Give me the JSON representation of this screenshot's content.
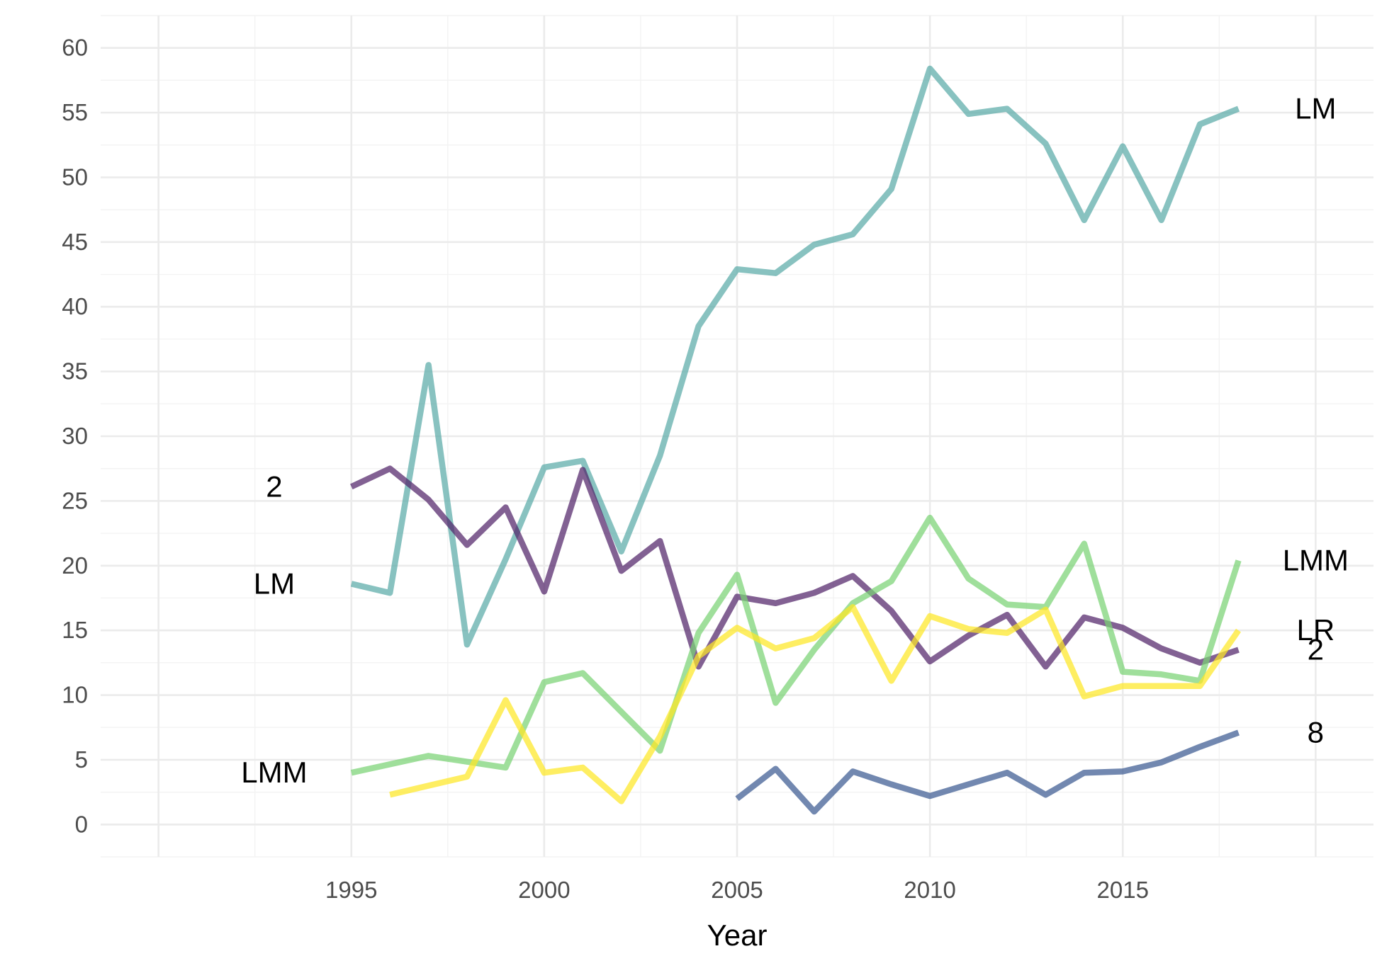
{
  "chart_data": {
    "type": "line",
    "title": "",
    "xlabel": "Year",
    "ylabel": "",
    "xlim": [
      1988.5,
      2021.5
    ],
    "ylim": [
      -2.5,
      62.5
    ],
    "x_ticks": [
      1995,
      2000,
      2005,
      2010,
      2015
    ],
    "y_ticks": [
      0,
      5,
      10,
      15,
      20,
      25,
      30,
      35,
      40,
      45,
      50,
      55,
      60
    ],
    "grid": true,
    "legend": "none",
    "series": [
      {
        "color": "#5aaaa7",
        "start_label": "LM",
        "end_label": "LM",
        "x": [
          1995,
          1996,
          1997,
          1998,
          1999,
          2000,
          2001,
          2002,
          2003,
          2004,
          2005,
          2006,
          2007,
          2008,
          2009,
          2010,
          2011,
          2012,
          2013,
          2014,
          2015,
          2016,
          2017,
          2018
        ],
        "y": [
          18.6,
          17.9,
          35.5,
          13.9,
          20.5,
          27.6,
          28.1,
          21.1,
          28.5,
          38.5,
          42.9,
          42.6,
          44.8,
          45.6,
          49.1,
          58.4,
          54.9,
          55.3,
          52.6,
          46.7,
          52.4,
          46.7,
          54.1,
          55.3
        ]
      },
      {
        "color": "#52246a",
        "start_label": "2",
        "end_label": "2",
        "x": [
          1995,
          1996,
          1997,
          1998,
          1999,
          2000,
          2001,
          2002,
          2003,
          2004,
          2005,
          2006,
          2007,
          2008,
          2009,
          2010,
          2011,
          2012,
          2013,
          2014,
          2015,
          2016,
          2017,
          2018
        ],
        "y": [
          26.1,
          27.5,
          25.1,
          21.6,
          24.5,
          18.0,
          27.4,
          19.6,
          21.9,
          12.2,
          17.6,
          17.1,
          17.9,
          19.2,
          16.5,
          12.6,
          14.6,
          16.2,
          12.2,
          16.0,
          15.2,
          13.6,
          12.5,
          13.5
        ]
      },
      {
        "color": "#7ad375",
        "start_label": "LMM",
        "end_label": "LMM",
        "x": [
          1995,
          1997,
          1999,
          2000,
          2001,
          2003,
          2004,
          2005,
          2006,
          2007,
          2008,
          2009,
          2010,
          2011,
          2012,
          2013,
          2014,
          2015,
          2016,
          2017,
          2018
        ],
        "y": [
          4.0,
          5.3,
          4.4,
          11.0,
          11.7,
          5.7,
          14.8,
          19.3,
          9.4,
          13.5,
          17.1,
          18.8,
          23.7,
          19.0,
          17.0,
          16.8,
          21.7,
          11.8,
          11.6,
          11.1,
          20.4
        ]
      },
      {
        "color": "#fde725",
        "start_label": "",
        "end_label": "LR",
        "x": [
          1996,
          1998,
          1999,
          2000,
          2001,
          2002,
          2003,
          2004,
          2005,
          2006,
          2007,
          2008,
          2009,
          2010,
          2011,
          2012,
          2013,
          2014,
          2015,
          2016,
          2017,
          2018
        ],
        "y": [
          2.3,
          3.7,
          9.6,
          4.0,
          4.4,
          1.8,
          6.8,
          13.0,
          15.2,
          13.6,
          14.4,
          16.8,
          11.1,
          16.1,
          15.1,
          14.8,
          16.6,
          9.9,
          10.7,
          10.7,
          10.7,
          15.0
        ]
      },
      {
        "color": "#3c5a92",
        "start_label": "",
        "end_label": "8",
        "x": [
          2005,
          2006,
          2007,
          2008,
          2009,
          2010,
          2011,
          2012,
          2013,
          2014,
          2015,
          2016,
          2017,
          2018
        ],
        "y": [
          2.0,
          4.3,
          1.0,
          4.1,
          3.1,
          2.2,
          3.1,
          4.0,
          2.3,
          4.0,
          4.1,
          4.8,
          6.0,
          7.1
        ]
      }
    ]
  }
}
